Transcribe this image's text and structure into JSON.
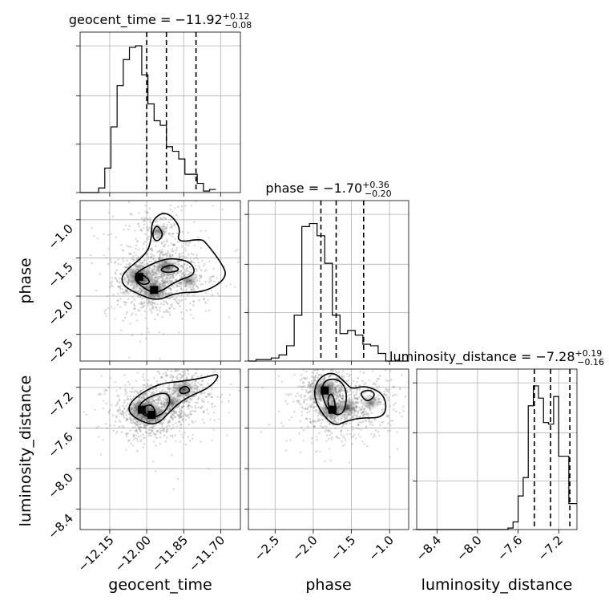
{
  "chart_data": [
    {
      "type": "histogram",
      "panel": "geocent_time-marginal",
      "title": {
        "base": "geocent_time = −11.92",
        "sup": "+0.12",
        "sub": "−0.08"
      },
      "x_range": [
        -12.27,
        -11.62
      ],
      "y_range": [
        0,
        1
      ],
      "bins_start": -12.27,
      "bin_width": 0.025,
      "bin_values": [
        0.0,
        0.0,
        0.0,
        0.03,
        0.16,
        0.43,
        0.7,
        0.87,
        0.95,
        0.96,
        0.77,
        0.58,
        0.47,
        0.44,
        0.3,
        0.27,
        0.22,
        0.12,
        0.12,
        0.06,
        0.01,
        0.02
      ],
      "quantile_lines": [
        -12.0,
        -11.92,
        -11.8
      ],
      "grid": true
    },
    {
      "type": "histogram",
      "panel": "phase-marginal",
      "title": {
        "base": "phase = −1.70",
        "sup": "+0.36",
        "sub": "−0.20"
      },
      "x_range": [
        -2.85,
        -0.75
      ],
      "y_range": [
        0,
        1
      ],
      "bins_start": -2.85,
      "bin_width": 0.1,
      "bin_values": [
        0.0,
        0.01,
        0.01,
        0.02,
        0.04,
        0.1,
        0.3,
        0.88,
        0.9,
        0.82,
        0.64,
        0.3,
        0.18,
        0.2,
        0.17,
        0.11,
        0.1,
        0.05,
        0.0,
        0.0,
        0.0
      ],
      "quantile_lines": [
        -1.9,
        -1.7,
        -1.34
      ],
      "grid": true
    },
    {
      "type": "histogram",
      "panel": "luminosity_distance-marginal",
      "title": {
        "base": "luminosity_distance = −7.28",
        "sup": "+0.19",
        "sub": "−0.16"
      },
      "x_range": [
        -8.6,
        -7.02
      ],
      "y_range": [
        0,
        1
      ],
      "bins_start": -8.6,
      "bin_width": 0.05,
      "bin_values": [
        0,
        0,
        0,
        0,
        0,
        0,
        0,
        0,
        0,
        0,
        0,
        0,
        0,
        0,
        0,
        0,
        0,
        0,
        0.01,
        0.05,
        0.22,
        0.34,
        0.81,
        0.94,
        0.86,
        0.7,
        0.69,
        0.87,
        0.48,
        0.48,
        0.17,
        0.17
      ],
      "quantile_lines": [
        -7.44,
        -7.28,
        -7.09
      ],
      "grid": true
    },
    {
      "type": "scatter-density-contour",
      "panel": "phase-vs-geocent_time",
      "x_range": [
        -12.27,
        -11.62
      ],
      "y_range": [
        -2.85,
        -0.75
      ],
      "ylabel": "phase",
      "yticks": [
        "−1.0",
        "−1.5",
        "−2.0",
        "−2.5"
      ],
      "ytick_values": [
        -1.0,
        -1.5,
        -2.0,
        -2.5
      ],
      "density_peaks": [
        {
          "x": -12.03,
          "y": -1.75,
          "w": 1.0
        },
        {
          "x": -11.97,
          "y": -1.92,
          "w": 0.9
        },
        {
          "x": -11.92,
          "y": -1.62,
          "w": 0.6
        },
        {
          "x": -11.95,
          "y": -1.15,
          "w": 0.2
        },
        {
          "x": -11.83,
          "y": -1.8,
          "w": 0.25
        }
      ],
      "contours": [
        [
          [
            -12.1,
            -1.7
          ],
          [
            -12.0,
            -1.45
          ],
          [
            -11.98,
            -1.25
          ],
          [
            -11.98,
            -1.0
          ],
          [
            -11.92,
            -0.88
          ],
          [
            -11.86,
            -1.1
          ],
          [
            -11.88,
            -1.3
          ],
          [
            -11.78,
            -1.25
          ],
          [
            -11.76,
            -1.3
          ],
          [
            -11.7,
            -1.55
          ],
          [
            -11.67,
            -1.75
          ],
          [
            -11.76,
            -1.95
          ],
          [
            -11.88,
            -1.95
          ],
          [
            -11.96,
            -2.07
          ],
          [
            -12.05,
            -1.95
          ],
          [
            -12.1,
            -1.85
          ]
        ],
        [
          [
            -12.04,
            -1.68
          ],
          [
            -11.96,
            -1.55
          ],
          [
            -11.9,
            -1.5
          ],
          [
            -11.82,
            -1.55
          ],
          [
            -11.8,
            -1.72
          ],
          [
            -11.88,
            -1.8
          ],
          [
            -11.96,
            -1.98
          ],
          [
            -12.02,
            -1.88
          ],
          [
            -12.05,
            -1.78
          ]
        ],
        [
          [
            -12.05,
            -1.75
          ],
          [
            -12.02,
            -1.7
          ],
          [
            -11.98,
            -1.82
          ],
          [
            -12.02,
            -1.86
          ]
        ],
        [
          [
            -11.98,
            -1.2
          ],
          [
            -11.96,
            -1.05
          ],
          [
            -11.93,
            -1.2
          ],
          [
            -11.96,
            -1.3
          ]
        ],
        [
          [
            -11.95,
            -1.65
          ],
          [
            -11.9,
            -1.58
          ],
          [
            -11.86,
            -1.66
          ],
          [
            -11.92,
            -1.7
          ]
        ]
      ]
    },
    {
      "type": "scatter-density-contour",
      "panel": "luminosity_distance-vs-geocent_time",
      "x_range": [
        -12.27,
        -11.62
      ],
      "y_range": [
        -8.6,
        -7.02
      ],
      "xlabel": "geocent_time",
      "ylabel": "luminosity_distance",
      "xticks": [
        "−12.15",
        "−12.00",
        "−11.85",
        "−11.70"
      ],
      "xtick_values": [
        -12.15,
        -12.0,
        -11.85,
        -11.7
      ],
      "yticks": [
        "−7.2",
        "−7.6",
        "−8.0",
        "−8.4"
      ],
      "ytick_values": [
        -7.2,
        -7.6,
        -8.0,
        -8.4
      ],
      "density_peaks": [
        {
          "x": -12.02,
          "y": -7.42,
          "w": 1.0
        },
        {
          "x": -11.98,
          "y": -7.47,
          "w": 0.9
        },
        {
          "x": -11.85,
          "y": -7.22,
          "w": 0.6
        },
        {
          "x": -11.9,
          "y": -7.35,
          "w": 0.4
        }
      ],
      "contours": [
        [
          [
            -12.08,
            -7.42
          ],
          [
            -12.05,
            -7.3
          ],
          [
            -11.95,
            -7.16
          ],
          [
            -11.85,
            -7.14
          ],
          [
            -11.76,
            -7.1
          ],
          [
            -11.7,
            -7.06
          ],
          [
            -11.74,
            -7.2
          ],
          [
            -11.84,
            -7.3
          ],
          [
            -11.9,
            -7.42
          ],
          [
            -11.96,
            -7.58
          ],
          [
            -12.04,
            -7.52
          ]
        ],
        [
          [
            -12.04,
            -7.4
          ],
          [
            -12.0,
            -7.3
          ],
          [
            -11.92,
            -7.24
          ],
          [
            -11.9,
            -7.34
          ],
          [
            -11.94,
            -7.48
          ],
          [
            -12.0,
            -7.5
          ]
        ],
        [
          [
            -12.02,
            -7.4
          ],
          [
            -11.98,
            -7.36
          ],
          [
            -11.96,
            -7.46
          ],
          [
            -12.0,
            -7.48
          ]
        ],
        [
          [
            -11.87,
            -7.22
          ],
          [
            -11.84,
            -7.18
          ],
          [
            -11.82,
            -7.24
          ],
          [
            -11.86,
            -7.27
          ]
        ]
      ]
    },
    {
      "type": "scatter-density-contour",
      "panel": "luminosity_distance-vs-phase",
      "x_range": [
        -2.85,
        -0.75
      ],
      "y_range": [
        -8.6,
        -7.02
      ],
      "xlabel": "phase",
      "xticks": [
        "−2.5",
        "−2.0",
        "−1.5",
        "−1.0"
      ],
      "xtick_values": [
        -2.5,
        -2.0,
        -1.5,
        -1.0
      ],
      "density_peaks": [
        {
          "x": -1.85,
          "y": -7.23,
          "w": 1.0
        },
        {
          "x": -1.75,
          "y": -7.42,
          "w": 0.8
        },
        {
          "x": -1.55,
          "y": -7.4,
          "w": 0.4
        },
        {
          "x": -1.25,
          "y": -7.35,
          "w": 0.25
        }
      ],
      "contours": [
        [
          [
            -2.0,
            -7.3
          ],
          [
            -1.95,
            -7.12
          ],
          [
            -1.75,
            -7.04
          ],
          [
            -1.58,
            -7.15
          ],
          [
            -1.5,
            -7.22
          ],
          [
            -1.3,
            -7.18
          ],
          [
            -1.05,
            -7.28
          ],
          [
            -1.05,
            -7.5
          ],
          [
            -1.4,
            -7.5
          ],
          [
            -1.6,
            -7.54
          ],
          [
            -1.7,
            -7.58
          ],
          [
            -1.85,
            -7.5
          ]
        ],
        [
          [
            -1.9,
            -7.25
          ],
          [
            -1.85,
            -7.12
          ],
          [
            -1.65,
            -7.12
          ],
          [
            -1.55,
            -7.25
          ],
          [
            -1.6,
            -7.48
          ],
          [
            -1.8,
            -7.45
          ]
        ],
        [
          [
            -1.82,
            -7.3
          ],
          [
            -1.75,
            -7.25
          ],
          [
            -1.7,
            -7.4
          ],
          [
            -1.78,
            -7.45
          ]
        ],
        [
          [
            -1.4,
            -7.25
          ],
          [
            -1.25,
            -7.22
          ],
          [
            -1.18,
            -7.28
          ],
          [
            -1.3,
            -7.35
          ]
        ]
      ]
    }
  ]
}
